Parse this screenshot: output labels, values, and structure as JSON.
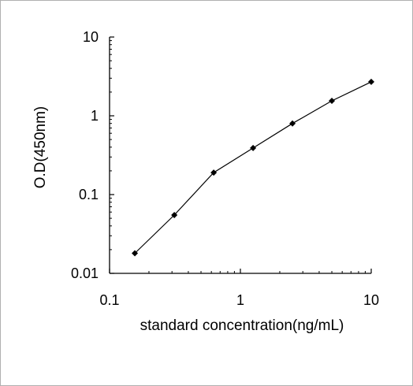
{
  "chart_data": {
    "type": "line",
    "xlabel": "standard concentration(ng/mL)",
    "ylabel": "O.D(450nm)",
    "x_scale": "log",
    "y_scale": "log",
    "xlim": [
      0.1,
      10
    ],
    "ylim": [
      0.01,
      10
    ],
    "x_ticks": [
      "0.1",
      "1",
      "10"
    ],
    "y_ticks": [
      "0.01",
      "0.1",
      "1",
      "10"
    ],
    "grid": false,
    "legend": "none",
    "line_color": "#000000",
    "series": [
      {
        "x": [
          0.156,
          0.3125,
          0.625,
          1.25,
          2.5,
          5,
          10
        ],
        "y": [
          0.018,
          0.055,
          0.19,
          0.39,
          0.8,
          1.55,
          2.7
        ]
      }
    ]
  }
}
